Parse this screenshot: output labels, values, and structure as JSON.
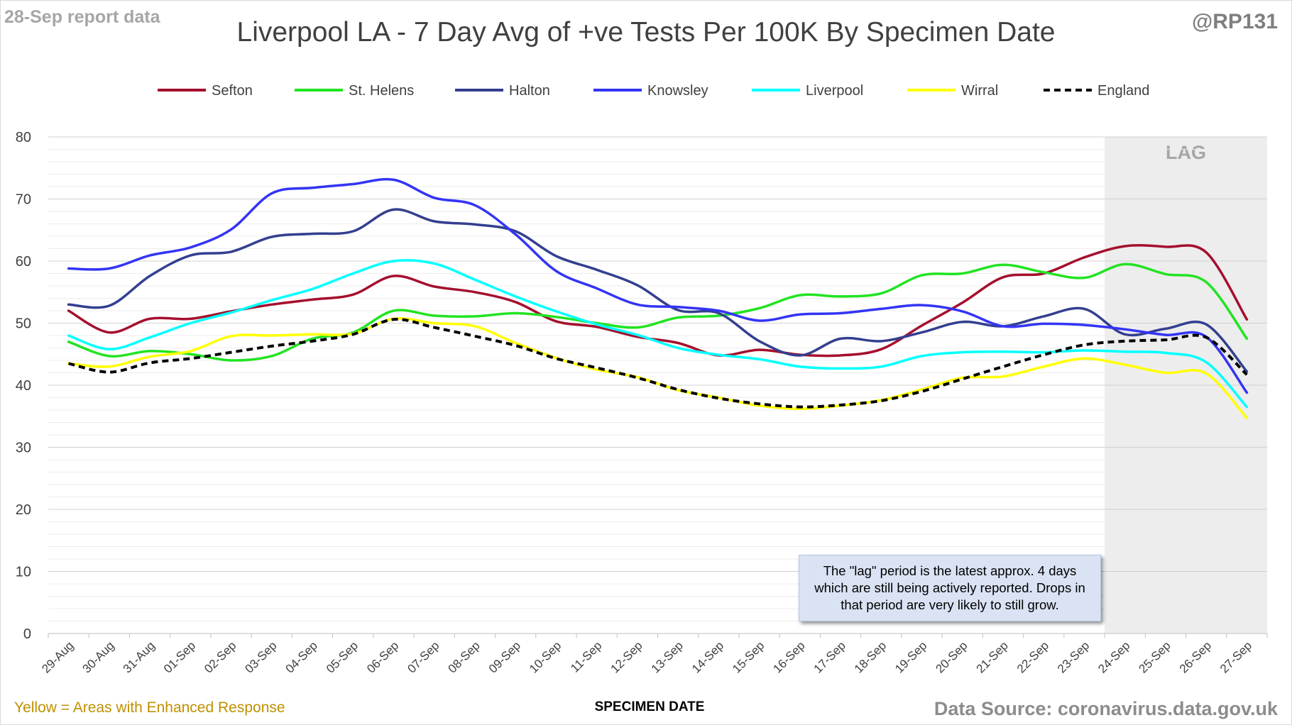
{
  "header": {
    "report_date": "28-Sep report data",
    "handle": "@RP131",
    "title": "Liverpool LA - 7 Day Avg of +ve Tests Per 100K By Specimen Date"
  },
  "footer": {
    "footnote": "Yellow = Areas with Enhanced Response",
    "source": "Data Source: coronavirus.data.gov.uk"
  },
  "note": "The \"lag\" period is the latest approx. 4 days which are still being actively reported. Drops in that period are very likely to still grow.",
  "chart_data": {
    "type": "line",
    "title": "Liverpool LA - 7 Day Avg of +ve Tests Per 100K By Specimen Date",
    "xlabel": "SPECIMEN DATE",
    "ylabel": "",
    "ylim": [
      0,
      80
    ],
    "yticks": [
      0,
      10,
      20,
      30,
      40,
      50,
      60,
      70,
      80
    ],
    "grid": true,
    "legend_position": "top",
    "lag_label": "LAG",
    "lag_start_index": 26,
    "categories": [
      "29-Aug",
      "30-Aug",
      "31-Aug",
      "01-Sep",
      "02-Sep",
      "03-Sep",
      "04-Sep",
      "05-Sep",
      "06-Sep",
      "07-Sep",
      "08-Sep",
      "09-Sep",
      "10-Sep",
      "11-Sep",
      "12-Sep",
      "13-Sep",
      "14-Sep",
      "15-Sep",
      "16-Sep",
      "17-Sep",
      "18-Sep",
      "19-Sep",
      "20-Sep",
      "21-Sep",
      "22-Sep",
      "23-Sep",
      "24-Sep",
      "25-Sep",
      "26-Sep",
      "27-Sep"
    ],
    "series": [
      {
        "name": "Sefton",
        "color": "#a50f2d",
        "dashed": false,
        "values": [
          52.0,
          48.5,
          50.7,
          50.7,
          51.9,
          53.0,
          53.8,
          54.6,
          57.6,
          55.9,
          55.0,
          53.4,
          50.3,
          49.4,
          47.8,
          46.8,
          44.8,
          45.7,
          44.9,
          44.8,
          45.8,
          49.6,
          53.3,
          57.4,
          58.0,
          60.6,
          62.4,
          62.3,
          61.4,
          50.6
        ]
      },
      {
        "name": "St. Helens",
        "color": "#22e322",
        "dashed": false,
        "values": [
          47.0,
          44.7,
          45.5,
          45.0,
          44.0,
          44.7,
          47.5,
          48.5,
          52.0,
          51.2,
          51.1,
          51.6,
          51.0,
          50.0,
          49.3,
          50.9,
          51.2,
          52.4,
          54.5,
          54.3,
          54.8,
          57.7,
          58.0,
          59.4,
          58.2,
          57.3,
          59.5,
          57.9,
          56.6,
          47.5
        ]
      },
      {
        "name": "Halton",
        "color": "#333f8f",
        "dashed": false,
        "values": [
          53.0,
          52.8,
          57.6,
          60.9,
          61.5,
          63.9,
          64.4,
          64.8,
          68.3,
          66.4,
          65.9,
          64.8,
          60.8,
          58.6,
          56.1,
          52.1,
          51.6,
          47.1,
          44.8,
          47.5,
          47.1,
          48.5,
          50.2,
          49.5,
          51.1,
          52.3,
          48.2,
          49.1,
          49.8,
          42.2
        ]
      },
      {
        "name": "Knowsley",
        "color": "#3434f5",
        "dashed": false,
        "values": [
          58.8,
          58.8,
          60.9,
          62.2,
          65.1,
          70.9,
          71.8,
          72.4,
          73.1,
          70.2,
          69.0,
          64.3,
          58.4,
          55.6,
          53.0,
          52.6,
          52.0,
          50.4,
          51.4,
          51.6,
          52.3,
          52.9,
          51.9,
          49.5,
          49.9,
          49.7,
          49.0,
          48.1,
          47.8,
          38.8
        ]
      },
      {
        "name": "Liverpool",
        "color": "#00ffff",
        "dashed": false,
        "values": [
          48.0,
          45.8,
          47.7,
          50.0,
          51.7,
          53.7,
          55.5,
          58.0,
          60.0,
          59.6,
          57.0,
          54.3,
          51.9,
          49.8,
          48.1,
          46.0,
          44.9,
          44.2,
          43.0,
          42.7,
          43.0,
          44.7,
          45.3,
          45.4,
          45.3,
          45.6,
          45.4,
          45.2,
          43.7,
          36.5
        ]
      },
      {
        "name": "Wirral",
        "color": "#ffff00",
        "dashed": false,
        "values": [
          43.5,
          43.0,
          44.6,
          45.5,
          47.9,
          48.0,
          48.2,
          48.3,
          50.7,
          50.0,
          49.5,
          46.8,
          44.4,
          42.5,
          41.3,
          39.2,
          38.0,
          36.7,
          36.2,
          36.7,
          37.6,
          39.3,
          41.2,
          41.4,
          43.0,
          44.3,
          43.3,
          42.0,
          41.9,
          34.7
        ]
      },
      {
        "name": "England",
        "color": "#000000",
        "dashed": true,
        "values": [
          43.5,
          42.1,
          43.6,
          44.3,
          45.3,
          46.3,
          47.1,
          48.2,
          50.6,
          49.3,
          47.9,
          46.4,
          44.3,
          42.8,
          41.2,
          39.3,
          37.9,
          37.0,
          36.5,
          36.8,
          37.5,
          39.0,
          41.0,
          43.0,
          44.9,
          46.5,
          47.1,
          47.3,
          47.7,
          41.7
        ]
      }
    ]
  }
}
